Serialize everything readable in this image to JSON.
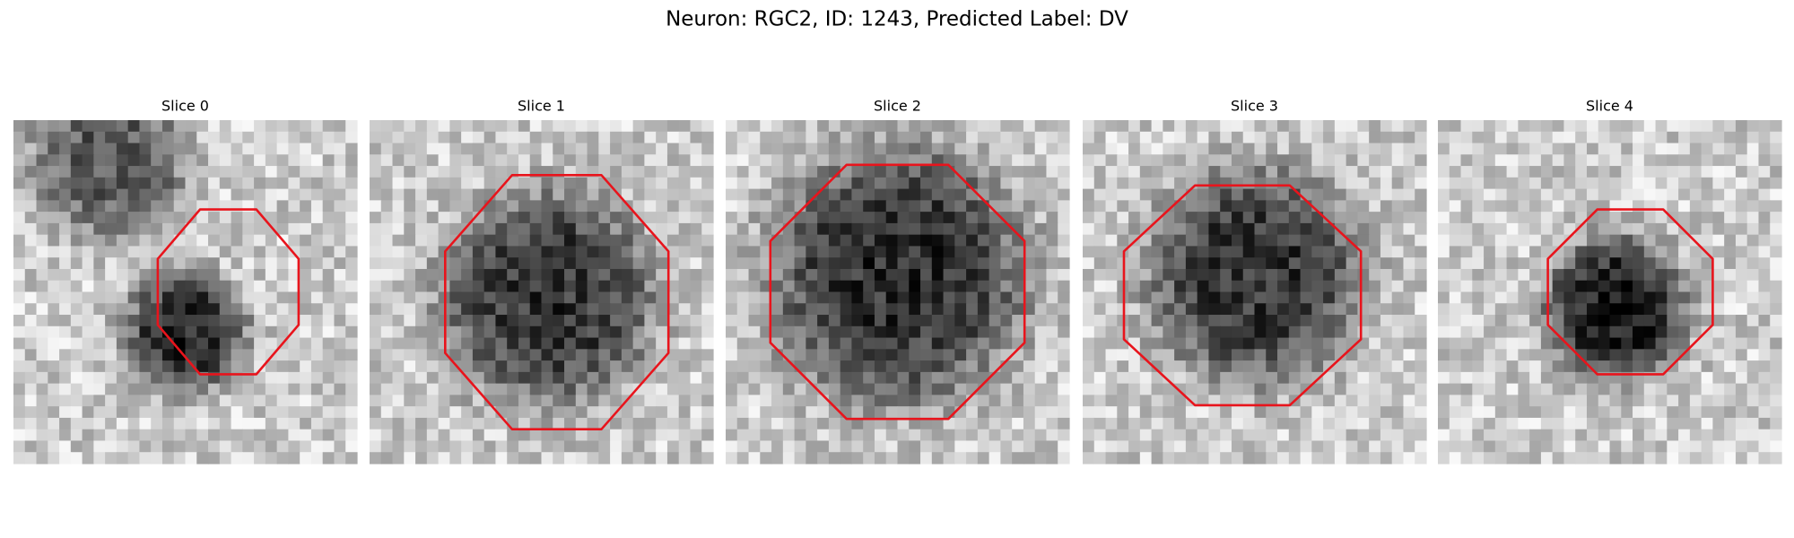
{
  "figure": {
    "title": "Neuron: RGC2, ID: 1243, Predicted Label: DV",
    "panels": [
      {
        "title": "Slice 0"
      },
      {
        "title": "Slice 1"
      },
      {
        "title": "Slice 2"
      },
      {
        "title": "Slice 3"
      },
      {
        "title": "Slice 4"
      }
    ]
  }
}
